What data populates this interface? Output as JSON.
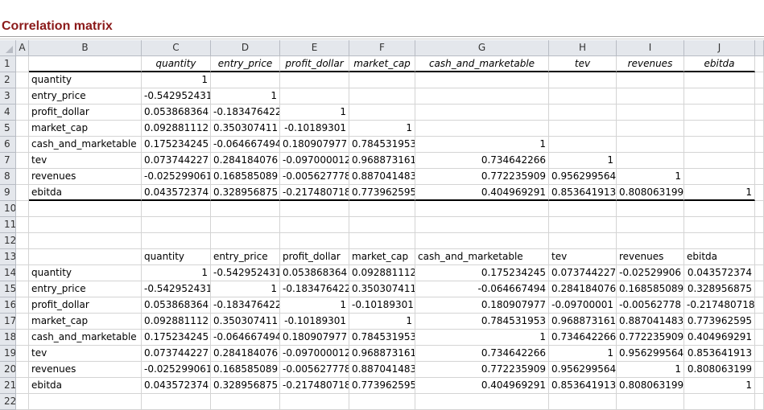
{
  "title": "Correlation matrix",
  "columns": [
    "A",
    "B",
    "C",
    "D",
    "E",
    "F",
    "G",
    "H",
    "I",
    "J"
  ],
  "row_numbers": [
    "1",
    "2",
    "3",
    "4",
    "5",
    "6",
    "7",
    "8",
    "9",
    "10",
    "11",
    "12",
    "13",
    "14",
    "15",
    "16",
    "17",
    "18",
    "19",
    "20",
    "21",
    "22"
  ],
  "table1": {
    "headers": [
      "quantity",
      "entry_price",
      "profit_dollar",
      "market_cap",
      "cash_and_marketable",
      "tev",
      "revenues",
      "ebitda"
    ],
    "rows": [
      {
        "label": "quantity",
        "values": [
          "1",
          "",
          "",
          "",
          "",
          "",
          "",
          ""
        ]
      },
      {
        "label": "entry_price",
        "values": [
          "-0.542952431",
          "1",
          "",
          "",
          "",
          "",
          "",
          ""
        ]
      },
      {
        "label": "profit_dollar",
        "values": [
          "0.053868364",
          "-0.183476422",
          "1",
          "",
          "",
          "",
          "",
          ""
        ]
      },
      {
        "label": "market_cap",
        "values": [
          "0.092881112",
          "0.350307411",
          "-0.10189301",
          "1",
          "",
          "",
          "",
          ""
        ]
      },
      {
        "label": "cash_and_marketable",
        "values": [
          "0.175234245",
          "-0.064667494",
          "0.180907977",
          "0.784531953",
          "1",
          "",
          "",
          ""
        ]
      },
      {
        "label": "tev",
        "values": [
          "0.073744227",
          "0.284184076",
          "-0.097000012",
          "0.968873161",
          "0.734642266",
          "1",
          "",
          ""
        ]
      },
      {
        "label": "revenues",
        "values": [
          "-0.025299061",
          "0.168585089",
          "-0.005627778",
          "0.887041483",
          "0.772235909",
          "0.956299564",
          "1",
          ""
        ]
      },
      {
        "label": "ebitda",
        "values": [
          "0.043572374",
          "0.328956875",
          "-0.217480718",
          "0.773962595",
          "0.404969291",
          "0.853641913",
          "0.808063199",
          "1"
        ]
      }
    ]
  },
  "table2": {
    "headers": [
      "quantity",
      "entry_price",
      "profit_dollar",
      "market_cap",
      "cash_and_marketable",
      "tev",
      "revenues",
      "ebitda"
    ],
    "rows": [
      {
        "label": "quantity",
        "values": [
          "1",
          "-0.542952431",
          "0.053868364",
          "0.092881112",
          "0.175234245",
          "0.073744227",
          "-0.02529906",
          "0.043572374"
        ]
      },
      {
        "label": "entry_price",
        "values": [
          "-0.542952431",
          "1",
          "-0.183476422",
          "0.350307411",
          "-0.064667494",
          "0.284184076",
          "0.168585089",
          "0.328956875"
        ]
      },
      {
        "label": "profit_dollar",
        "values": [
          "0.053868364",
          "-0.183476422",
          "1",
          "-0.10189301",
          "0.180907977",
          "-0.09700001",
          "-0.00562778",
          "-0.217480718"
        ]
      },
      {
        "label": "market_cap",
        "values": [
          "0.092881112",
          "0.350307411",
          "-0.10189301",
          "1",
          "0.784531953",
          "0.968873161",
          "0.887041483",
          "0.773962595"
        ]
      },
      {
        "label": "cash_and_marketable",
        "values": [
          "0.175234245",
          "-0.064667494",
          "0.180907977",
          "0.784531953",
          "1",
          "0.734642266",
          "0.772235909",
          "0.404969291"
        ]
      },
      {
        "label": "tev",
        "values": [
          "0.073744227",
          "0.284184076",
          "-0.097000012",
          "0.968873161",
          "0.734642266",
          "1",
          "0.956299564",
          "0.853641913"
        ]
      },
      {
        "label": "revenues",
        "values": [
          "-0.025299061",
          "0.168585089",
          "-0.005627778",
          "0.887041483",
          "0.772235909",
          "0.956299564",
          "1",
          "0.808063199"
        ]
      },
      {
        "label": "ebitda",
        "values": [
          "0.043572374",
          "0.328956875",
          "-0.217480718",
          "0.773962595",
          "0.404969291",
          "0.853641913",
          "0.808063199",
          "1"
        ]
      }
    ]
  }
}
